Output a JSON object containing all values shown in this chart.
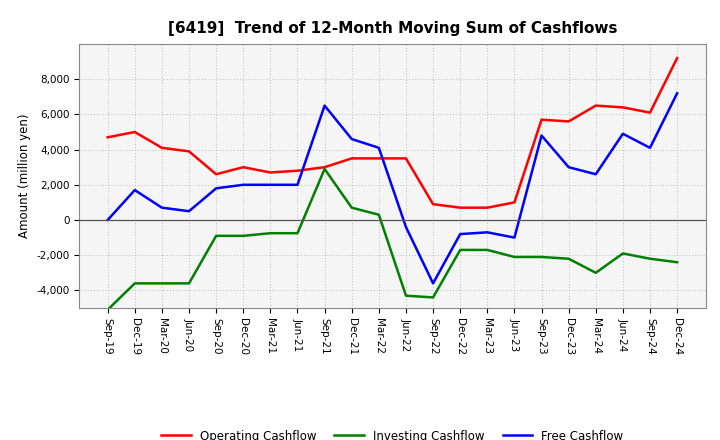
{
  "title": "[6419]  Trend of 12-Month Moving Sum of Cashflows",
  "ylabel": "Amount (million yen)",
  "background_color": "#ffffff",
  "plot_bg_color": "#f5f5f5",
  "grid_color": "#bbbbbb",
  "x_labels": [
    "Sep-19",
    "Dec-19",
    "Mar-20",
    "Jun-20",
    "Sep-20",
    "Dec-20",
    "Mar-21",
    "Jun-21",
    "Sep-21",
    "Dec-21",
    "Mar-22",
    "Jun-22",
    "Sep-22",
    "Dec-22",
    "Mar-23",
    "Jun-23",
    "Sep-23",
    "Dec-23",
    "Mar-24",
    "Jun-24",
    "Sep-24",
    "Dec-24"
  ],
  "operating_cashflow": [
    4700,
    5000,
    4100,
    3900,
    2600,
    3000,
    2700,
    2800,
    3000,
    3500,
    3500,
    3500,
    900,
    700,
    700,
    1000,
    5700,
    5600,
    6500,
    6400,
    6100,
    9200
  ],
  "investing_cashflow": [
    -5100,
    -3600,
    -3600,
    -3600,
    -900,
    -900,
    -750,
    -750,
    2900,
    700,
    300,
    -4300,
    -4400,
    -1700,
    -1700,
    -2100,
    -2100,
    -2200,
    -3000,
    -1900,
    -2200,
    -2400
  ],
  "free_cashflow": [
    0,
    1700,
    700,
    500,
    1800,
    2000,
    2000,
    2000,
    6500,
    4600,
    4100,
    -400,
    -3600,
    -800,
    -700,
    -1000,
    4800,
    3000,
    2600,
    4900,
    4100,
    7200
  ],
  "ylim": [
    -5000,
    10000
  ],
  "yticks": [
    -4000,
    -2000,
    0,
    2000,
    4000,
    6000,
    8000
  ],
  "operating_color": "#ff0000",
  "investing_color": "#008000",
  "free_color": "#0000ff",
  "line_width": 1.8,
  "title_fontsize": 11,
  "tick_fontsize": 7.5,
  "ylabel_fontsize": 8.5,
  "legend_fontsize": 8.5
}
